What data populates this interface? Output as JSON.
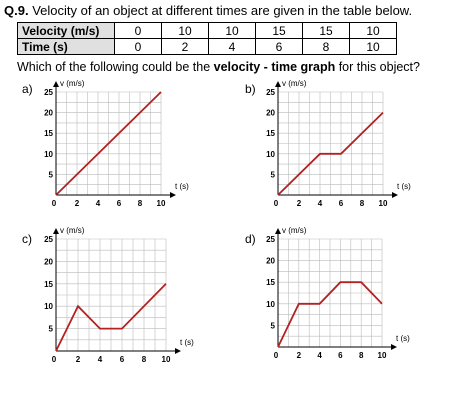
{
  "question": {
    "number": "Q.9.",
    "text": "Velocity of an object at different times are given in the table below."
  },
  "table": {
    "rows": [
      {
        "label": "Velocity (m/s)",
        "cells": [
          "0",
          "10",
          "10",
          "15",
          "15",
          "10"
        ]
      },
      {
        "label": "Time (s)",
        "cells": [
          "0",
          "2",
          "4",
          "6",
          "8",
          "10"
        ]
      }
    ]
  },
  "prompt": {
    "before": "Which of the following could be the ",
    "bold": "velocity - time graph",
    "after": " for this object?"
  },
  "colors": {
    "line": "#b22222",
    "grid": "#bbbbbb",
    "axis": "#000000"
  },
  "chart_data": [
    {
      "option": "a)",
      "type": "line",
      "xlabel": "t (s)",
      "ylabel": "v (m/s)",
      "xticks": [
        "0",
        "2",
        "4",
        "6",
        "8",
        "10"
      ],
      "yticks": [
        "5",
        "10",
        "15",
        "20",
        "25"
      ],
      "xlim": [
        0,
        10
      ],
      "ylim": [
        0,
        25
      ],
      "grid": true,
      "x": [
        0,
        10
      ],
      "y": [
        0,
        25
      ]
    },
    {
      "option": "b)",
      "type": "line",
      "xlabel": "t (s)",
      "ylabel": "v (m/s)",
      "xticks": [
        "0",
        "2",
        "4",
        "6",
        "8",
        "10"
      ],
      "yticks": [
        "5",
        "10",
        "15",
        "20",
        "25"
      ],
      "xlim": [
        0,
        10
      ],
      "ylim": [
        0,
        25
      ],
      "grid": true,
      "x": [
        0,
        4,
        6,
        10
      ],
      "y": [
        0,
        10,
        10,
        20
      ]
    },
    {
      "option": "c)",
      "type": "line",
      "xlabel": "t (s)",
      "ylabel": "v (m/s)",
      "xticks": [
        "0",
        "2",
        "4",
        "6",
        "8",
        "10"
      ],
      "yticks": [
        "5",
        "10",
        "15",
        "20",
        "25"
      ],
      "xlim": [
        0,
        10
      ],
      "ylim": [
        0,
        25
      ],
      "grid": true,
      "x": [
        0,
        2,
        4,
        6,
        10
      ],
      "y": [
        0,
        10,
        5,
        5,
        15
      ]
    },
    {
      "option": "d)",
      "type": "line",
      "xlabel": "t (s)",
      "ylabel": "v (m/s)",
      "xticks": [
        "0",
        "2",
        "4",
        "6",
        "8",
        "10"
      ],
      "yticks": [
        "5",
        "10",
        "15",
        "20",
        "25"
      ],
      "xlim": [
        0,
        10
      ],
      "ylim": [
        0,
        25
      ],
      "grid": true,
      "x": [
        0,
        2,
        4,
        6,
        8,
        10
      ],
      "y": [
        0,
        10,
        10,
        15,
        15,
        10
      ]
    }
  ]
}
